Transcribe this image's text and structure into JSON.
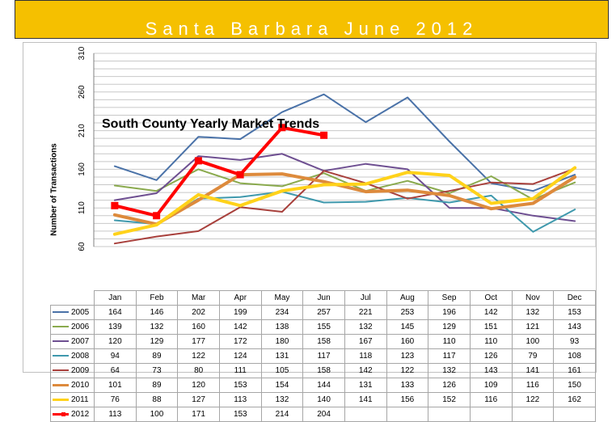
{
  "banner": {
    "title": "Santa Barbara June 2012",
    "color": "#f5c000"
  },
  "chart_data": {
    "type": "line",
    "title": "South County Yearly Market Trends",
    "ylabel": "Number of Transactions",
    "xlabel": "",
    "categories": [
      "Jan",
      "Feb",
      "Mar",
      "Apr",
      "May",
      "Jun",
      "Jul",
      "Aug",
      "Sep",
      "Oct",
      "Nov",
      "Dec"
    ],
    "ylim": [
      60,
      310
    ],
    "yticks": [
      60,
      110,
      160,
      210,
      260,
      310
    ],
    "grid": true,
    "legend": "data-table",
    "series": [
      {
        "name": "2005",
        "color": "#4a72a8",
        "width": 2,
        "values": [
          164,
          146,
          202,
          199,
          234,
          257,
          221,
          253,
          196,
          142,
          132,
          153
        ]
      },
      {
        "name": "2006",
        "color": "#8aaa4e",
        "width": 2,
        "values": [
          139,
          132,
          160,
          142,
          138,
          155,
          132,
          145,
          129,
          151,
          121,
          143
        ]
      },
      {
        "name": "2007",
        "color": "#6e4f91",
        "width": 2,
        "values": [
          120,
          129,
          177,
          172,
          180,
          158,
          167,
          160,
          110,
          110,
          100,
          93
        ]
      },
      {
        "name": "2008",
        "color": "#3f99ad",
        "width": 2,
        "values": [
          94,
          89,
          122,
          124,
          131,
          117,
          118,
          123,
          117,
          126,
          79,
          108
        ]
      },
      {
        "name": "2009",
        "color": "#a8403c",
        "width": 2,
        "values": [
          64,
          73,
          80,
          111,
          105,
          158,
          142,
          122,
          132,
          143,
          141,
          161
        ]
      },
      {
        "name": "2010",
        "color": "#dd8a3c",
        "width": 4,
        "values": [
          101,
          89,
          120,
          153,
          154,
          144,
          131,
          133,
          126,
          109,
          116,
          150
        ]
      },
      {
        "name": "2011",
        "color": "#ffd21a",
        "width": 4,
        "values": [
          76,
          88,
          127,
          113,
          132,
          140,
          141,
          156,
          152,
          116,
          122,
          162
        ]
      },
      {
        "name": "2012",
        "color": "#ff0000",
        "width": 4,
        "marker": "square",
        "values": [
          113,
          100,
          171,
          153,
          214,
          204,
          null,
          null,
          null,
          null,
          null,
          null
        ]
      }
    ]
  }
}
